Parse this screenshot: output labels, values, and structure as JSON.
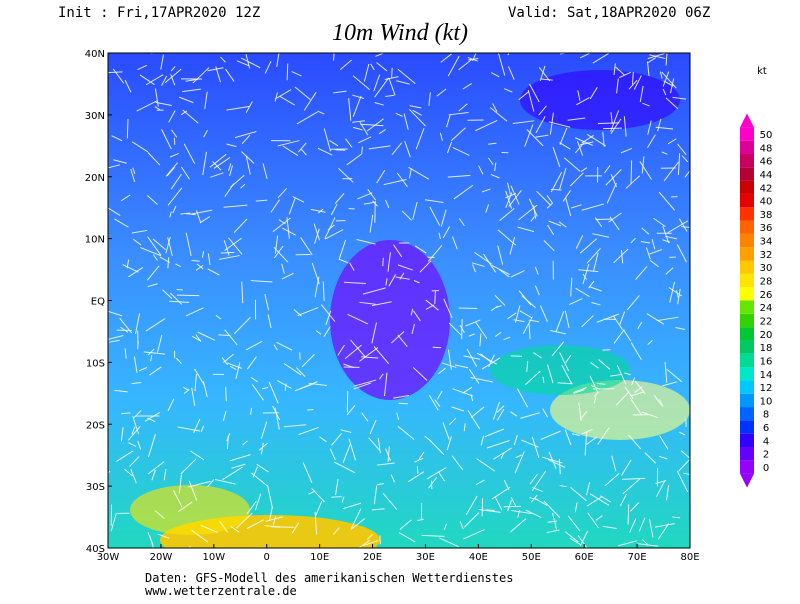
{
  "header": {
    "init": "Init : Fri,17APR2020 12Z",
    "valid": "Valid: Sat,18APR2020 06Z",
    "title": "10m Wind (kt)"
  },
  "map": {
    "lon_labels": [
      "30W",
      "20W",
      "10W",
      "0",
      "10E",
      "20E",
      "30E",
      "40E",
      "50E",
      "60E",
      "70E",
      "80E"
    ],
    "lat_labels": [
      "40N",
      "30N",
      "20N",
      "10N",
      "EQ",
      "10S",
      "20S",
      "30S",
      "40S"
    ]
  },
  "colorbar": {
    "unit": "kt",
    "ticks": [
      0,
      2,
      4,
      6,
      8,
      10,
      12,
      14,
      16,
      18,
      20,
      22,
      24,
      26,
      28,
      30,
      32,
      34,
      36,
      38,
      40,
      42,
      44,
      46,
      48,
      50
    ],
    "colors": [
      "#9600fe",
      "#6400ff",
      "#3200ff",
      "#0032ff",
      "#0064ff",
      "#0096ff",
      "#00c8ff",
      "#00e6c8",
      "#00dc96",
      "#00c864",
      "#00c832",
      "#32d200",
      "#64e600",
      "#ffff00",
      "#ffe600",
      "#ffc800",
      "#ffa000",
      "#ff8200",
      "#ff6400",
      "#ff3200",
      "#e60000",
      "#c80000",
      "#b40032",
      "#c80064",
      "#dc0096",
      "#ff00c8"
    ]
  },
  "footer": {
    "source": "Daten: GFS-Modell des amerikanischen Wetterdienstes",
    "url": "www.wetterzentrale.de"
  }
}
